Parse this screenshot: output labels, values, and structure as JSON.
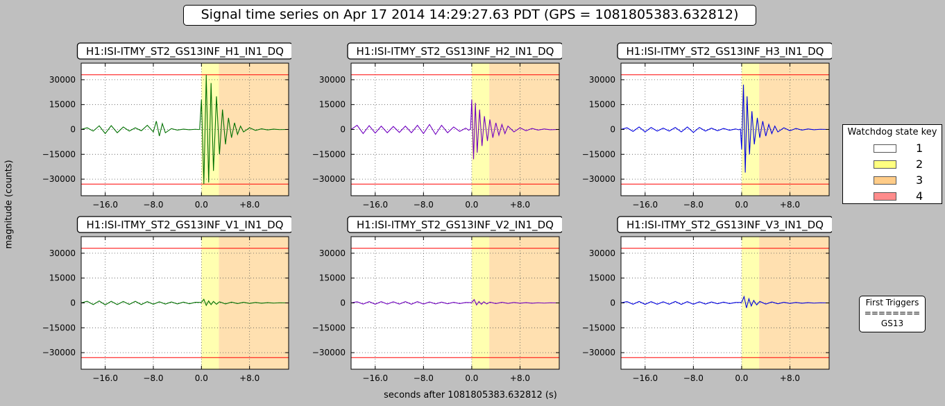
{
  "title": "Signal time series on Apr 17 2014 14:29:27.63 PDT (GPS = 1081805383.632812)",
  "ylabel": "magnitude (counts)",
  "xlabel": "seconds after 1081805383.632812 (s)",
  "colors": {
    "background": "#bfbfbf",
    "yellow": "#ffffb0",
    "orange": "#ffe0b0",
    "threshold": "#ff0000"
  },
  "legend": {
    "title": "Watchdog state key",
    "items": [
      {
        "label": "1",
        "color": "#ffffff"
      },
      {
        "label": "2",
        "color": "#ffff80"
      },
      {
        "label": "3",
        "color": "#ffcc88"
      },
      {
        "label": "4",
        "color": "#ff8c8c"
      }
    ]
  },
  "triggers": {
    "title": "First Triggers",
    "separator": "========",
    "value": "GS13"
  },
  "chart_data": [
    {
      "type": "line",
      "title": "H1:ISI-ITMY_ST2_GS13INF_H1_IN1_DQ",
      "color": "#007000",
      "xlim": [
        -20,
        14.5
      ],
      "ylim": [
        -40000,
        40000
      ],
      "xticks": [
        -16,
        -8,
        0,
        8
      ],
      "xticklabels": [
        "−16.0",
        "−8.0",
        "0.0",
        "+8.0"
      ],
      "yticks": [
        -30000,
        -15000,
        0,
        15000,
        30000
      ],
      "yticklabels": [
        "−30000",
        "−15000",
        "0",
        "15000",
        "30000"
      ],
      "thresholds": [
        33000,
        -33000
      ],
      "state_regions": [
        {
          "state": 2,
          "x0": 0,
          "x1": 2.9
        },
        {
          "state": 3,
          "x0": 2.9,
          "x1": 14.5
        }
      ],
      "grid": true,
      "series": [
        {
          "x": [
            -20,
            -19,
            -18,
            -17,
            -16,
            -15,
            -14,
            -13,
            -12,
            -11,
            -10,
            -9,
            -8,
            -7.5,
            -7,
            -6.5,
            -6,
            -5,
            -4,
            -3,
            -2,
            -1,
            -0.5,
            -0.3,
            0,
            0.4,
            0.8,
            1.2,
            1.6,
            2,
            2.5,
            3,
            3.5,
            4,
            4.5,
            5,
            5.5,
            6,
            6.5,
            7,
            8,
            9,
            10,
            11,
            12,
            13,
            14.5
          ],
          "y": [
            0,
            1000,
            -1000,
            2200,
            -2500,
            2300,
            -2000,
            1500,
            -1000,
            1000,
            -800,
            2500,
            -1500,
            5000,
            -4000,
            3500,
            -2000,
            500,
            -400,
            200,
            -200,
            100,
            -50,
            0,
            18000,
            -33000,
            33000,
            -32000,
            28000,
            -25000,
            20000,
            -15000,
            12000,
            -9000,
            7000,
            -5000,
            4000,
            -3000,
            2000,
            -1500,
            1000,
            -600,
            400,
            -300,
            200,
            -100,
            0
          ]
        }
      ]
    },
    {
      "type": "line",
      "title": "H1:ISI-ITMY_ST2_GS13INF_H2_IN1_DQ",
      "color": "#7000c0",
      "xlim": [
        -20,
        14.5
      ],
      "ylim": [
        -40000,
        40000
      ],
      "xticks": [
        -16,
        -8,
        0,
        8
      ],
      "xticklabels": [
        "−16.0",
        "−8.0",
        "0.0",
        "+8.0"
      ],
      "yticks": [
        -30000,
        -15000,
        0,
        15000,
        30000
      ],
      "yticklabels": [
        "−30000",
        "−15000",
        "0",
        "15000",
        "30000"
      ],
      "thresholds": [
        33000,
        -33000
      ],
      "state_regions": [
        {
          "state": 2,
          "x0": 0,
          "x1": 2.9
        },
        {
          "state": 3,
          "x0": 2.9,
          "x1": 14.5
        }
      ],
      "grid": true,
      "series": [
        {
          "x": [
            -20,
            -19,
            -18,
            -17,
            -16,
            -15,
            -14,
            -13,
            -12,
            -11,
            -10,
            -9,
            -8,
            -7,
            -6,
            -5,
            -4,
            -3,
            -2,
            -1,
            -0.5,
            -0.2,
            0,
            0.3,
            0.6,
            0.9,
            1.3,
            1.7,
            2.1,
            2.6,
            3,
            3.5,
            4,
            4.5,
            5,
            5.5,
            6,
            7,
            8,
            9,
            10,
            11,
            12,
            13,
            14.5
          ],
          "y": [
            0,
            2500,
            -2500,
            2300,
            -2200,
            2000,
            -2000,
            1800,
            -1800,
            2000,
            -2000,
            2500,
            -2500,
            3000,
            -3000,
            2500,
            -2000,
            1500,
            -1200,
            800,
            -500,
            300,
            18000,
            -18000,
            16000,
            -14000,
            12000,
            -10000,
            8000,
            -7000,
            6000,
            -5000,
            4000,
            -3500,
            3000,
            -2500,
            2000,
            -1500,
            1000,
            -800,
            600,
            -400,
            300,
            -200,
            0
          ]
        }
      ]
    },
    {
      "type": "line",
      "title": "H1:ISI-ITMY_ST2_GS13INF_H3_IN1_DQ",
      "color": "#0000e0",
      "xlim": [
        -20,
        14.5
      ],
      "ylim": [
        -40000,
        40000
      ],
      "xticks": [
        -16,
        -8,
        0,
        8
      ],
      "xticklabels": [
        "−16.0",
        "−8.0",
        "0.0",
        "+8.0"
      ],
      "yticks": [
        -30000,
        -15000,
        0,
        15000,
        30000
      ],
      "yticklabels": [
        "−30000",
        "−15000",
        "0",
        "15000",
        "30000"
      ],
      "thresholds": [
        33000,
        -33000
      ],
      "state_regions": [
        {
          "state": 2,
          "x0": 0,
          "x1": 2.9
        },
        {
          "state": 3,
          "x0": 2.9,
          "x1": 14.5
        }
      ],
      "grid": true,
      "series": [
        {
          "x": [
            -20,
            -19,
            -18,
            -17,
            -16,
            -15,
            -14,
            -13,
            -12,
            -11,
            -10,
            -9,
            -8,
            -7,
            -6,
            -5,
            -4,
            -3,
            -2,
            -1,
            -0.5,
            -0.2,
            0,
            0.3,
            0.6,
            0.9,
            1.3,
            1.7,
            2.1,
            2.6,
            3,
            3.5,
            4,
            4.5,
            5,
            5.5,
            6,
            7,
            8,
            9,
            10,
            11,
            12,
            13,
            14.5
          ],
          "y": [
            0,
            1000,
            -1200,
            1500,
            -1500,
            1200,
            -1000,
            800,
            -1000,
            1200,
            -1500,
            1500,
            -1800,
            1200,
            -1000,
            800,
            -800,
            600,
            -500,
            300,
            -200,
            200,
            -12000,
            27000,
            -26000,
            20000,
            -15000,
            11000,
            -9000,
            7000,
            -5000,
            5000,
            -4000,
            3000,
            -2500,
            2000,
            -1500,
            1000,
            -800,
            600,
            -400,
            300,
            -200,
            100,
            0
          ]
        }
      ]
    },
    {
      "type": "line",
      "title": "H1:ISI-ITMY_ST2_GS13INF_V1_IN1_DQ",
      "color": "#007000",
      "xlim": [
        -20,
        14.5
      ],
      "ylim": [
        -40000,
        40000
      ],
      "xticks": [
        -16,
        -8,
        0,
        8
      ],
      "xticklabels": [
        "−16.0",
        "−8.0",
        "0.0",
        "+8.0"
      ],
      "yticks": [
        -30000,
        -15000,
        0,
        15000,
        30000
      ],
      "yticklabels": [
        "−30000",
        "−15000",
        "0",
        "15000",
        "30000"
      ],
      "thresholds": [
        33000,
        -33000
      ],
      "state_regions": [
        {
          "state": 2,
          "x0": 0,
          "x1": 2.9
        },
        {
          "state": 3,
          "x0": 2.9,
          "x1": 14.5
        }
      ],
      "grid": true,
      "series": [
        {
          "x": [
            -20,
            -19,
            -18,
            -17,
            -16,
            -15,
            -14,
            -13,
            -12,
            -11,
            -10,
            -9,
            -8,
            -7,
            -6,
            -5,
            -4,
            -3,
            -2,
            -1,
            0,
            0.4,
            0.8,
            1.2,
            1.6,
            2,
            2.5,
            3,
            4,
            5,
            6,
            7,
            8,
            9,
            10,
            11,
            12,
            13,
            14.5
          ],
          "y": [
            0,
            1000,
            -1000,
            1200,
            -1200,
            1000,
            -1000,
            900,
            -900,
            1000,
            -1000,
            800,
            -800,
            700,
            -700,
            600,
            -600,
            500,
            -500,
            400,
            300,
            2200,
            -1500,
            1200,
            -1000,
            900,
            -800,
            700,
            -600,
            500,
            -400,
            400,
            -300,
            300,
            -200,
            200,
            -100,
            100,
            0
          ]
        }
      ]
    },
    {
      "type": "line",
      "title": "H1:ISI-ITMY_ST2_GS13INF_V2_IN1_DQ",
      "color": "#7000c0",
      "xlim": [
        -20,
        14.5
      ],
      "ylim": [
        -40000,
        40000
      ],
      "xticks": [
        -16,
        -8,
        0,
        8
      ],
      "xticklabels": [
        "−16.0",
        "−8.0",
        "0.0",
        "+8.0"
      ],
      "yticks": [
        -30000,
        -15000,
        0,
        15000,
        30000
      ],
      "yticklabels": [
        "−30000",
        "−15000",
        "0",
        "15000",
        "30000"
      ],
      "thresholds": [
        33000,
        -33000
      ],
      "state_regions": [
        {
          "state": 2,
          "x0": 0,
          "x1": 2.9
        },
        {
          "state": 3,
          "x0": 2.9,
          "x1": 14.5
        }
      ],
      "grid": true,
      "series": [
        {
          "x": [
            -20,
            -19,
            -18,
            -17,
            -16,
            -15,
            -14,
            -13,
            -12,
            -11,
            -10,
            -9,
            -8,
            -7,
            -6,
            -5,
            -4,
            -3,
            -2,
            -1,
            0,
            0.4,
            0.8,
            1.2,
            1.6,
            2,
            2.5,
            3,
            4,
            5,
            6,
            7,
            8,
            9,
            10,
            11,
            12,
            13,
            14.5
          ],
          "y": [
            0,
            700,
            -700,
            800,
            -800,
            800,
            -700,
            700,
            -700,
            800,
            -800,
            800,
            -700,
            600,
            -600,
            500,
            -500,
            400,
            -400,
            300,
            200,
            2000,
            -1200,
            900,
            -800,
            700,
            -600,
            500,
            -400,
            400,
            -300,
            300,
            -200,
            200,
            -200,
            100,
            -100,
            100,
            0
          ]
        }
      ]
    },
    {
      "type": "line",
      "title": "H1:ISI-ITMY_ST2_GS13INF_V3_IN1_DQ",
      "color": "#0000e0",
      "xlim": [
        -20,
        14.5
      ],
      "ylim": [
        -40000,
        40000
      ],
      "xticks": [
        -16,
        -8,
        0,
        8
      ],
      "xticklabels": [
        "−16.0",
        "−8.0",
        "0.0",
        "+8.0"
      ],
      "yticks": [
        -30000,
        -15000,
        0,
        15000,
        30000
      ],
      "yticklabels": [
        "−30000",
        "−15000",
        "0",
        "15000",
        "30000"
      ],
      "thresholds": [
        33000,
        -33000
      ],
      "state_regions": [
        {
          "state": 2,
          "x0": 0,
          "x1": 2.9
        },
        {
          "state": 3,
          "x0": 2.9,
          "x1": 14.5
        }
      ],
      "grid": true,
      "series": [
        {
          "x": [
            -20,
            -19,
            -18,
            -17,
            -16,
            -15,
            -14,
            -13,
            -12,
            -11,
            -10,
            -9,
            -8,
            -7,
            -6,
            -5,
            -4,
            -3,
            -2,
            -1,
            0,
            0.4,
            0.8,
            1.2,
            1.6,
            2,
            2.5,
            3,
            4,
            5,
            6,
            7,
            8,
            9,
            10,
            11,
            12,
            13,
            14.5
          ],
          "y": [
            0,
            800,
            -800,
            900,
            -900,
            800,
            -800,
            700,
            -800,
            900,
            -900,
            800,
            -800,
            700,
            -700,
            600,
            -500,
            500,
            -400,
            300,
            300,
            3800,
            -3000,
            2500,
            -1800,
            1500,
            -1200,
            900,
            -700,
            600,
            -500,
            400,
            -300,
            300,
            -200,
            200,
            -100,
            100,
            0
          ]
        }
      ]
    }
  ]
}
